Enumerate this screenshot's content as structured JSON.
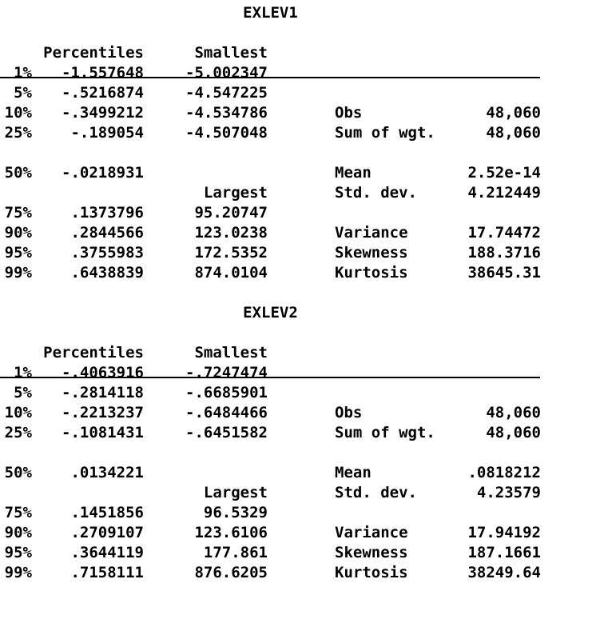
{
  "colors": {
    "text": "#000000",
    "background": "#ffffff"
  },
  "prompt": ".",
  "tables": [
    {
      "title": "EXLEV1",
      "rows": [
        {
          "pct": "",
          "value": "",
          "extreme": "Smallest",
          "stat": "",
          "statval": ""
        },
        {
          "pct": "1%",
          "value": "-1.557648",
          "extreme": "-5.002347",
          "stat": "",
          "statval": ""
        },
        {
          "pct": "5%",
          "value": "-.5216874",
          "extreme": "-4.547225",
          "stat": "",
          "statval": ""
        },
        {
          "pct": "10%",
          "value": "-.3499212",
          "extreme": "-4.534786",
          "stat": "Obs",
          "statval": "48,060"
        },
        {
          "pct": "25%",
          "value": "-.189054",
          "extreme": "-4.507048",
          "stat": "Sum of wgt.",
          "statval": "48,060"
        },
        {
          "pct": "",
          "value": "",
          "extreme": "",
          "stat": "",
          "statval": ""
        },
        {
          "pct": "50%",
          "value": "-.0218931",
          "extreme": "",
          "stat": "Mean",
          "statval": "2.52e-14"
        },
        {
          "pct": "",
          "value": "",
          "extreme": "Largest",
          "stat": "Std. dev.",
          "statval": "4.212449"
        },
        {
          "pct": "75%",
          "value": ".1373796",
          "extreme": "95.20747",
          "stat": "",
          "statval": ""
        },
        {
          "pct": "90%",
          "value": ".2844566",
          "extreme": "123.0238",
          "stat": "Variance",
          "statval": "17.74472"
        },
        {
          "pct": "95%",
          "value": ".3755983",
          "extreme": "172.5352",
          "stat": "Skewness",
          "statval": "188.3716"
        },
        {
          "pct": "99%",
          "value": ".6438839",
          "extreme": "874.0104",
          "stat": "Kurtosis",
          "statval": "38645.31"
        }
      ],
      "header_percentiles": "Percentiles"
    },
    {
      "title": "EXLEV2",
      "rows": [
        {
          "pct": "",
          "value": "",
          "extreme": "Smallest",
          "stat": "",
          "statval": ""
        },
        {
          "pct": "1%",
          "value": "-.4063916",
          "extreme": "-.7247474",
          "stat": "",
          "statval": ""
        },
        {
          "pct": "5%",
          "value": "-.2814118",
          "extreme": "-.6685901",
          "stat": "",
          "statval": ""
        },
        {
          "pct": "10%",
          "value": "-.2213237",
          "extreme": "-.6484466",
          "stat": "Obs",
          "statval": "48,060"
        },
        {
          "pct": "25%",
          "value": "-.1081431",
          "extreme": "-.6451582",
          "stat": "Sum of wgt.",
          "statval": "48,060"
        },
        {
          "pct": "",
          "value": "",
          "extreme": "",
          "stat": "",
          "statval": ""
        },
        {
          "pct": "50%",
          "value": ".0134221",
          "extreme": "",
          "stat": "Mean",
          "statval": ".0818212"
        },
        {
          "pct": "",
          "value": "",
          "extreme": "Largest",
          "stat": "Std. dev.",
          "statval": "4.23579"
        },
        {
          "pct": "75%",
          "value": ".1451856",
          "extreme": "96.5329",
          "stat": "",
          "statval": ""
        },
        {
          "pct": "90%",
          "value": ".2709107",
          "extreme": "123.6106",
          "stat": "Variance",
          "statval": "17.94192"
        },
        {
          "pct": "95%",
          "value": ".3644119",
          "extreme": "177.861",
          "stat": "Skewness",
          "statval": "187.1661"
        },
        {
          "pct": "99%",
          "value": ".7158111",
          "extreme": "876.6205",
          "stat": "Kurtosis",
          "statval": "38249.64"
        }
      ],
      "header_percentiles": "Percentiles"
    }
  ]
}
